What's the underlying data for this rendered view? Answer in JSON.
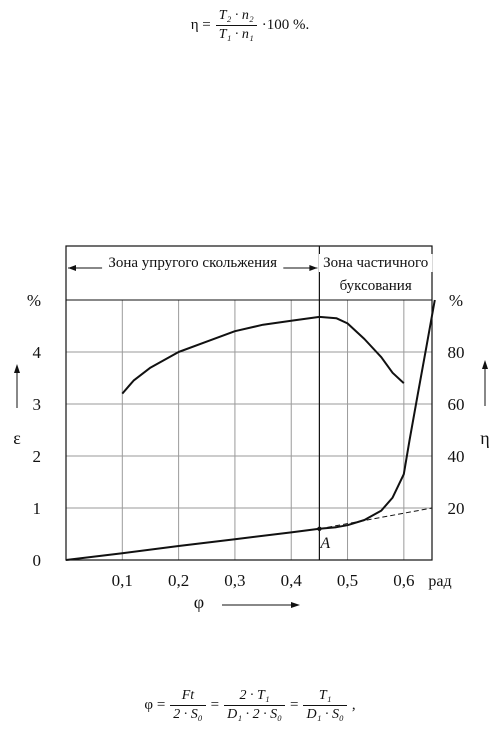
{
  "formulas": {
    "eta": {
      "lhs": "η =",
      "num": "T₂ · n₂",
      "den": "T₁ · n₁",
      "tail": "·100 %."
    },
    "phi": {
      "lhs": "φ =",
      "f1_num": "Ft",
      "f1_den": "2 · S₀",
      "eq1": "=",
      "f2_num": "2 · T₁",
      "f2_den": "D₁ · 2 · S₀",
      "eq2": "=",
      "f3_num": "T₁",
      "f3_den": "D₁ · S₀",
      "tail": ","
    }
  },
  "chart_data": {
    "type": "line",
    "zones": [
      {
        "label": "Зона упругого скольжения",
        "from": 0,
        "to": 0.45
      },
      {
        "label_lines": [
          "Зона частичного",
          "буксования"
        ],
        "from": 0.45,
        "to": 0.65
      }
    ],
    "x_ticks": [
      "0,1",
      "0,2",
      "0,3",
      "0,4",
      "0,5",
      "0,6"
    ],
    "x_tick_values": [
      0.1,
      0.2,
      0.3,
      0.4,
      0.5,
      0.6
    ],
    "x_unit": "рад",
    "x_axis_label": "φ",
    "left_axis": {
      "label": "ε",
      "unit": "%",
      "ticks": [
        "0",
        "1",
        "2",
        "3",
        "4"
      ],
      "tick_values": [
        0,
        1,
        2,
        3,
        4
      ],
      "range": [
        0,
        5
      ]
    },
    "right_axis": {
      "label": "η",
      "unit": "%",
      "ticks": [
        "20",
        "40",
        "60",
        "80"
      ],
      "tick_values": [
        20,
        40,
        60,
        80
      ],
      "range": [
        0,
        100
      ]
    },
    "xlim": [
      0,
      0.65
    ],
    "grid": true,
    "point_label": "A",
    "point_A": {
      "x": 0.45,
      "y": 0.6
    },
    "series": [
      {
        "axis": "left",
        "style": "solid",
        "points": [
          [
            0,
            0
          ],
          [
            0.1,
            0.13
          ],
          [
            0.2,
            0.27
          ],
          [
            0.3,
            0.4
          ],
          [
            0.4,
            0.53
          ],
          [
            0.45,
            0.6
          ],
          [
            0.48,
            0.63
          ],
          [
            0.5,
            0.67
          ],
          [
            0.53,
            0.77
          ],
          [
            0.56,
            0.95
          ],
          [
            0.58,
            1.2
          ],
          [
            0.6,
            1.65
          ],
          [
            0.61,
            2.3
          ],
          [
            0.625,
            3.2
          ],
          [
            0.64,
            4.1
          ],
          [
            0.655,
            5.0
          ]
        ]
      },
      {
        "axis": "left",
        "style": "dashed",
        "points": [
          [
            0.45,
            0.6
          ],
          [
            0.65,
            1.0
          ]
        ]
      },
      {
        "axis": "right",
        "style": "solid",
        "points": [
          [
            0.1,
            64
          ],
          [
            0.12,
            69
          ],
          [
            0.15,
            74
          ],
          [
            0.2,
            80
          ],
          [
            0.25,
            84
          ],
          [
            0.3,
            88
          ],
          [
            0.35,
            90.5
          ],
          [
            0.4,
            92
          ],
          [
            0.45,
            93.5
          ],
          [
            0.48,
            93
          ],
          [
            0.5,
            91
          ],
          [
            0.53,
            85
          ],
          [
            0.56,
            78
          ],
          [
            0.58,
            72
          ],
          [
            0.6,
            68
          ]
        ]
      }
    ]
  }
}
